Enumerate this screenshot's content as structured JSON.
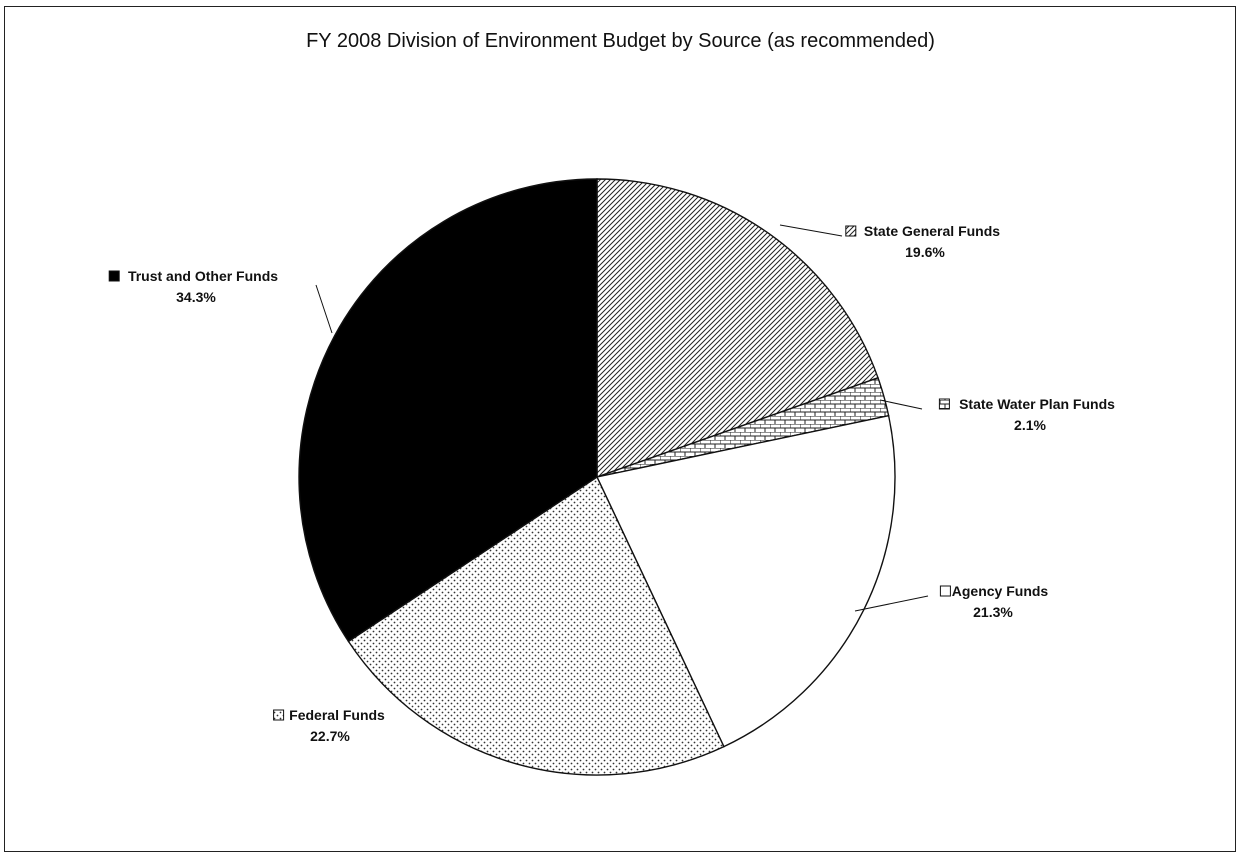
{
  "chart_data": {
    "type": "pie",
    "title": "FY 2008 Division of Environment Budget by Source (as recommended)",
    "slices": [
      {
        "name": "State General Funds",
        "value": 19.6,
        "label": "19.6%",
        "pattern": "diagonal-hatch"
      },
      {
        "name": "State Water Plan Funds",
        "value": 2.1,
        "label": "2.1%",
        "pattern": "brick"
      },
      {
        "name": "Agency Funds",
        "value": 21.3,
        "label": "21.3%",
        "pattern": "white"
      },
      {
        "name": "Federal Funds",
        "value": 22.7,
        "label": "22.7%",
        "pattern": "dots"
      },
      {
        "name": "Trust and Other Funds",
        "value": 34.3,
        "label": "34.3%",
        "pattern": "black"
      }
    ],
    "start": "12 o'clock, clockwise",
    "legend": "none (data labels beside slices)"
  }
}
